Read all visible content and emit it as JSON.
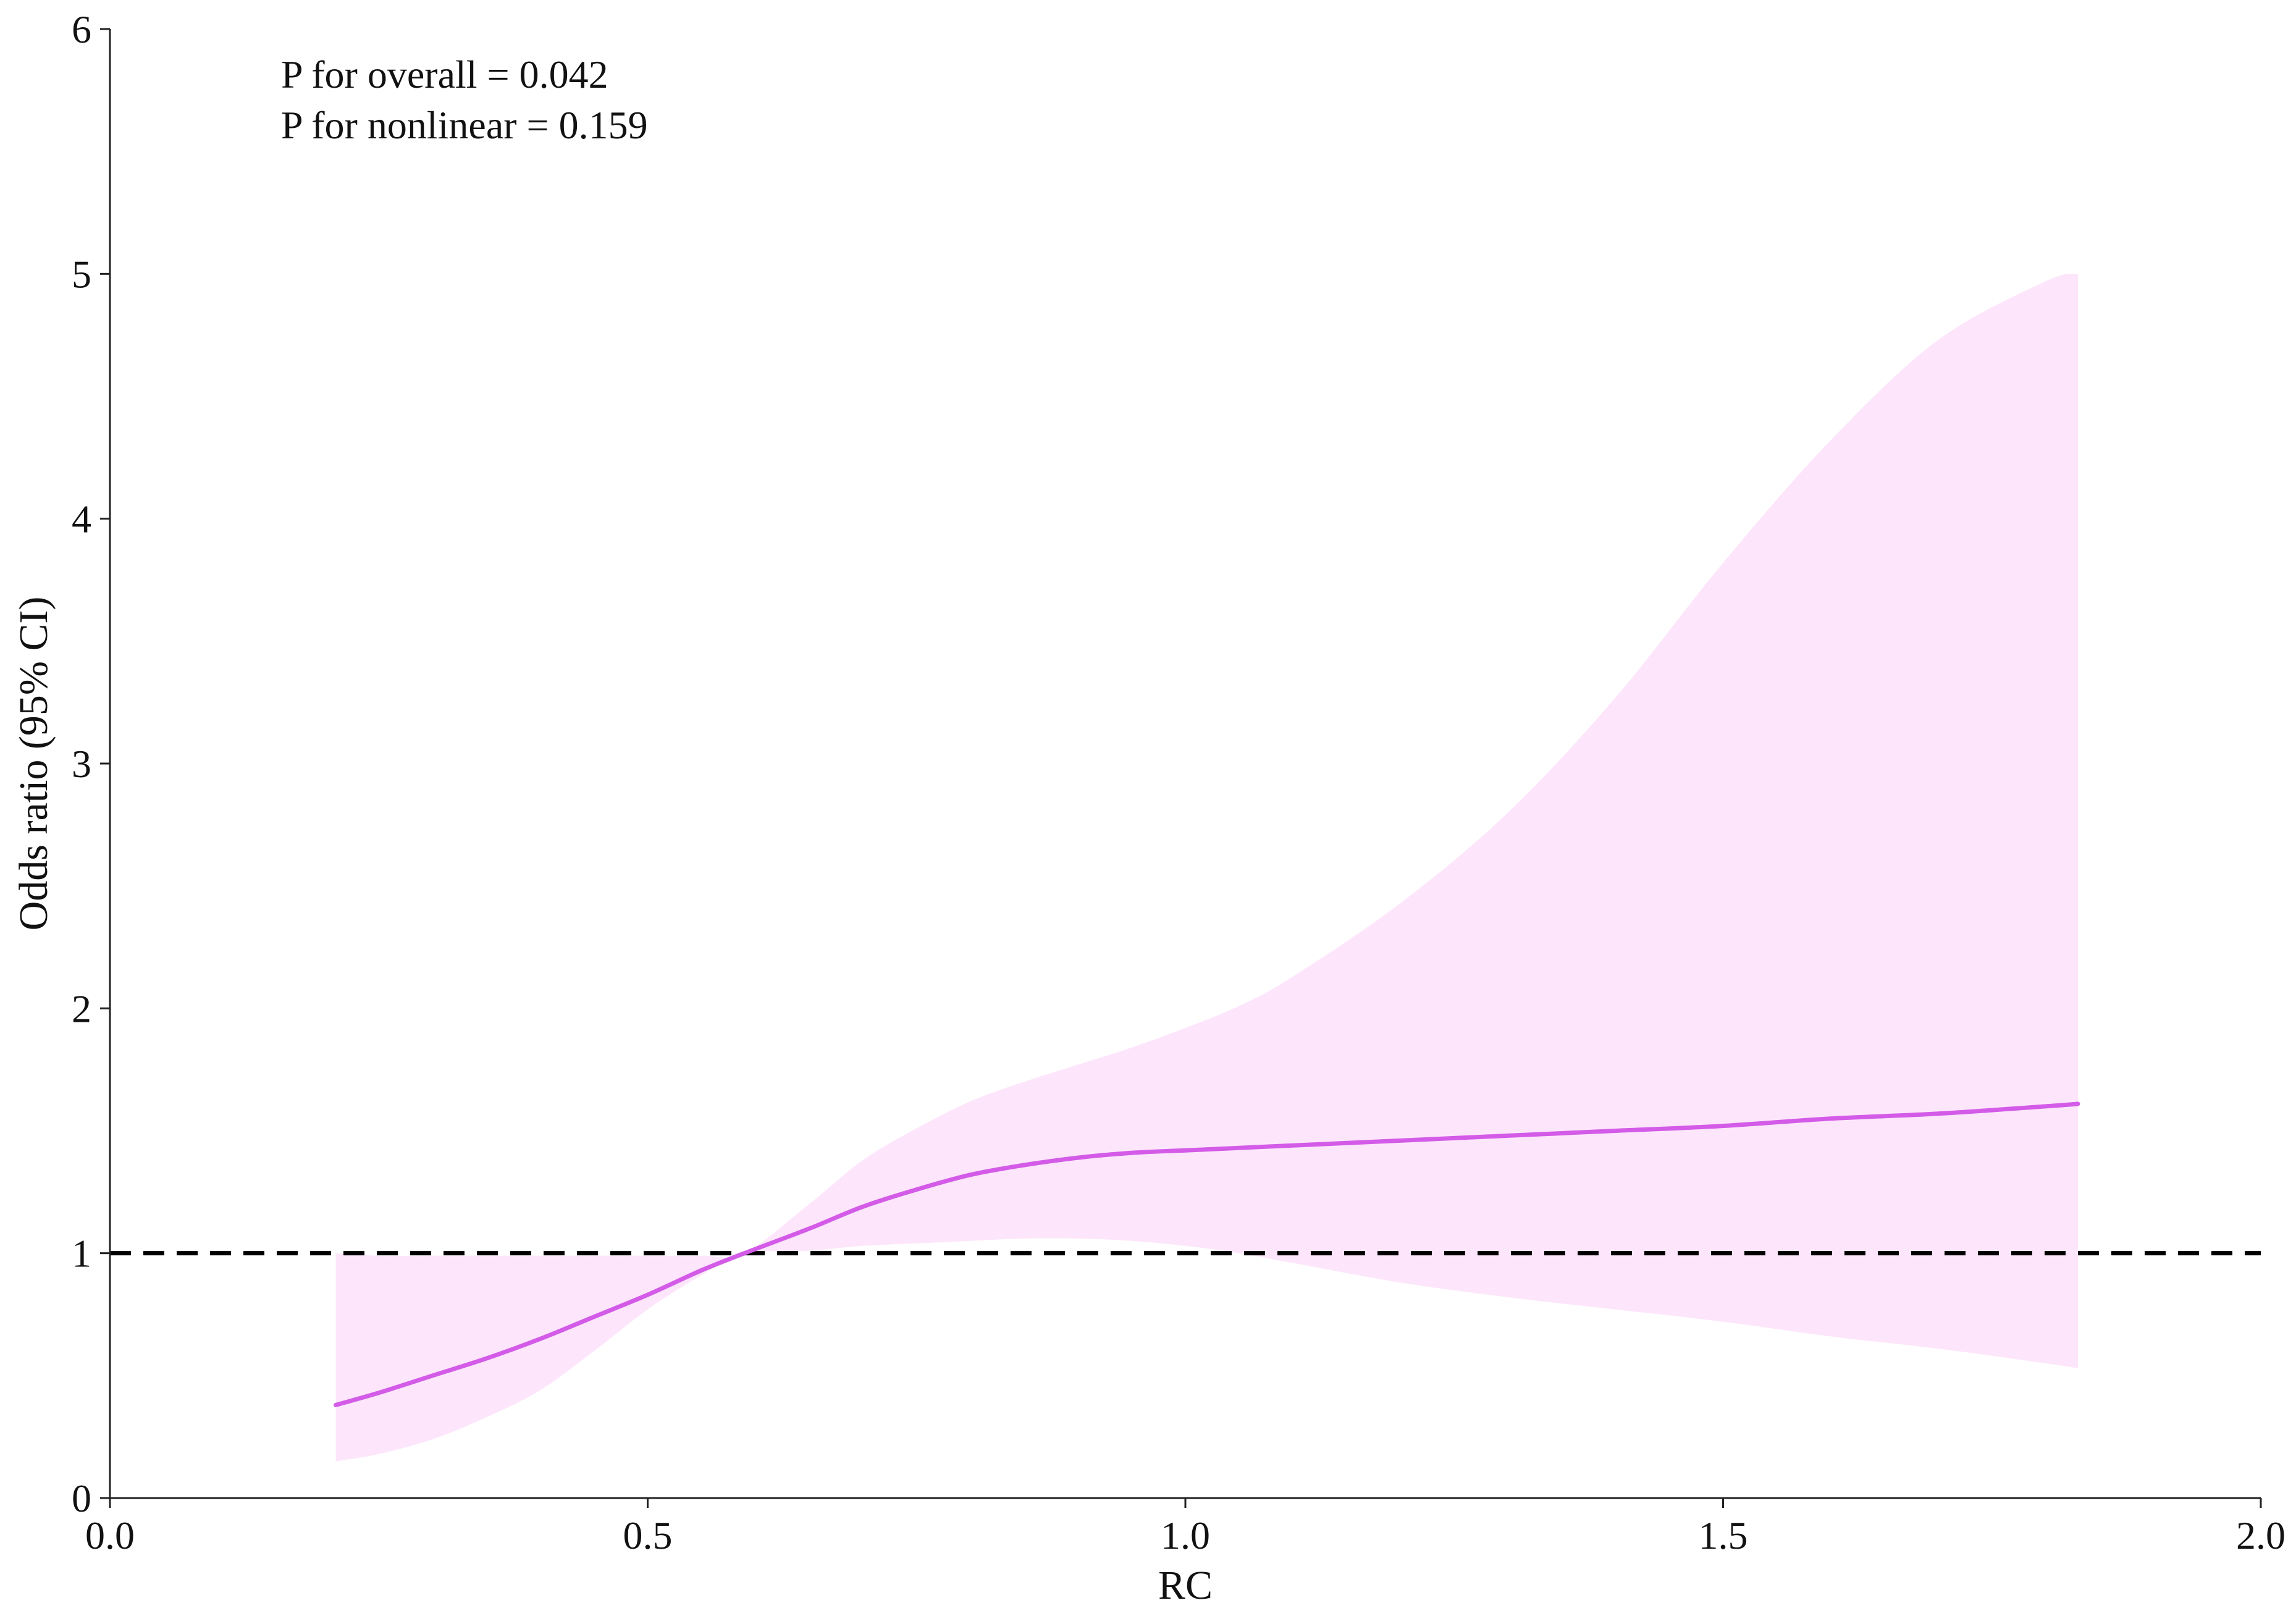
{
  "chart_data": {
    "type": "line",
    "title": "",
    "xlabel": "RC",
    "ylabel": "Odds ratio (95% CI)",
    "xlim": [
      0.0,
      2.0
    ],
    "ylim": [
      0,
      6
    ],
    "x_ticks": [
      "0.0",
      "0.5",
      "1.0",
      "1.5",
      "2.0"
    ],
    "y_ticks": [
      "0",
      "1",
      "2",
      "3",
      "4",
      "5",
      "6"
    ],
    "grid": false,
    "annotations": [
      "P for overall = 0.042",
      "P for nonlinear = 0.159"
    ],
    "reference_line": {
      "y": 1,
      "style": "dashed",
      "color": "#000000"
    },
    "colors": {
      "line": "#d35be8",
      "band": "#fde6fb"
    },
    "series": [
      {
        "x": [
          0.21,
          0.25,
          0.3,
          0.35,
          0.4,
          0.45,
          0.5,
          0.55,
          0.59,
          0.65,
          0.7,
          0.75,
          0.8,
          0.85,
          0.9,
          0.95,
          1.0,
          1.05,
          1.1,
          1.2,
          1.3,
          1.4,
          1.5,
          1.6,
          1.7,
          1.8,
          1.83
        ],
        "y": [
          0.38,
          0.43,
          0.5,
          0.57,
          0.65,
          0.74,
          0.83,
          0.93,
          1.0,
          1.1,
          1.19,
          1.26,
          1.32,
          1.36,
          1.39,
          1.41,
          1.42,
          1.43,
          1.44,
          1.46,
          1.48,
          1.5,
          1.52,
          1.55,
          1.57,
          1.6,
          1.61
        ],
        "lower": [
          0.15,
          0.18,
          0.24,
          0.33,
          0.44,
          0.6,
          0.77,
          0.91,
          1.0,
          1.01,
          1.03,
          1.04,
          1.05,
          1.06,
          1.06,
          1.05,
          1.03,
          1.0,
          0.96,
          0.88,
          0.82,
          0.77,
          0.72,
          0.66,
          0.61,
          0.55,
          0.53
        ],
        "upper": [
          1.0,
          0.99,
          0.99,
          0.99,
          0.99,
          0.99,
          0.99,
          0.99,
          1.0,
          1.2,
          1.38,
          1.51,
          1.62,
          1.7,
          1.77,
          1.84,
          1.92,
          2.01,
          2.13,
          2.43,
          2.8,
          3.27,
          3.82,
          4.32,
          4.73,
          4.97,
          5.0
        ]
      }
    ]
  }
}
